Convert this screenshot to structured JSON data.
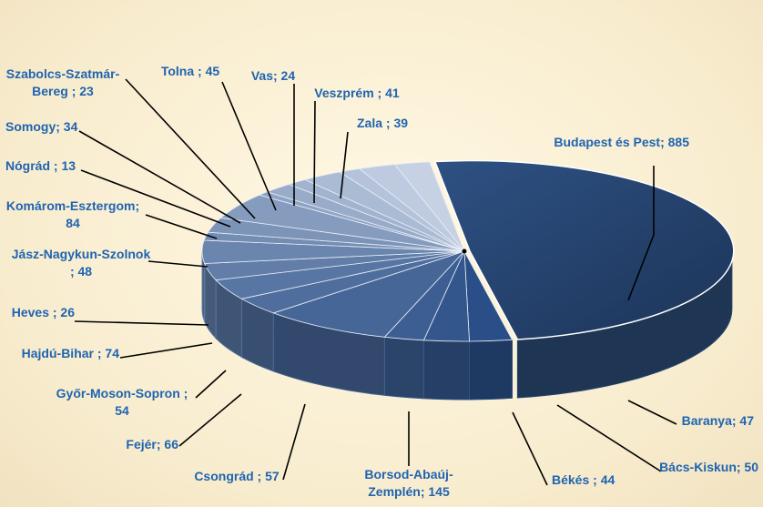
{
  "chart_data": {
    "type": "pie",
    "title": "",
    "slices": [
      {
        "label": "Budapest és Pest",
        "value": 885,
        "text": "Budapest és Pest; 885"
      },
      {
        "label": "Baranya",
        "value": 47,
        "text": "Baranya; 47"
      },
      {
        "label": "Bács-Kiskun",
        "value": 50,
        "text": "Bács-Kiskun; 50"
      },
      {
        "label": "Békés",
        "value": 44,
        "text": "Békés ; 44"
      },
      {
        "label": "Borsod-Abaúj-Zemplén",
        "value": 145,
        "text": "Borsod-Abaúj-Zemplén; 145",
        "lines": [
          "Borsod-Abaúj-",
          "Zemplén; 145"
        ]
      },
      {
        "label": "Csongrád",
        "value": 57,
        "text": "Csongrád ; 57"
      },
      {
        "label": "Fejér",
        "value": 66,
        "text": "Fejér; 66"
      },
      {
        "label": "Győr-Moson-Sopron",
        "value": 54,
        "text": "Győr-Moson-Sopron ; 54",
        "lines": [
          "Győr-Moson-Sopron ;",
          "54"
        ]
      },
      {
        "label": "Hajdú-Bihar",
        "value": 74,
        "text": "Hajdú-Bihar ; 74"
      },
      {
        "label": "Heves",
        "value": 26,
        "text": "Heves  ; 26"
      },
      {
        "label": "Jász-Nagykun-Szolnok",
        "value": 48,
        "text": "Jász-Nagykun-Szolnok ; 48",
        "lines": [
          "Jász-Nagykun-Szolnok",
          "; 48"
        ]
      },
      {
        "label": "Komárom-Esztergom",
        "value": 84,
        "text": "Komárom-Esztergom; 84",
        "lines": [
          "Komárom-Esztergom;",
          "84"
        ]
      },
      {
        "label": "Nógrád",
        "value": 13,
        "text": "Nógrád ; 13"
      },
      {
        "label": "Somogy",
        "value": 34,
        "text": "Somogy; 34"
      },
      {
        "label": "Szabolcs-Szatmár-Bereg",
        "value": 23,
        "text": "Szabolcs-Szatmár-Bereg ; 23",
        "lines": [
          "Szabolcs-Szatmár-",
          "Bereg ; 23"
        ]
      },
      {
        "label": "Tolna",
        "value": 45,
        "text": "Tolna ; 45"
      },
      {
        "label": "Vas",
        "value": 24,
        "text": "Vas; 24"
      },
      {
        "label": "Veszprém",
        "value": 41,
        "text": "Veszprém ; 41"
      },
      {
        "label": "Zala",
        "value": 39,
        "text": "Zala ; 39"
      }
    ],
    "colors": {
      "label_text": "#1f64b0",
      "leader_line": "#000000",
      "dark_slice": "#2b4a74",
      "light_slice": "#c3cfe2"
    }
  }
}
